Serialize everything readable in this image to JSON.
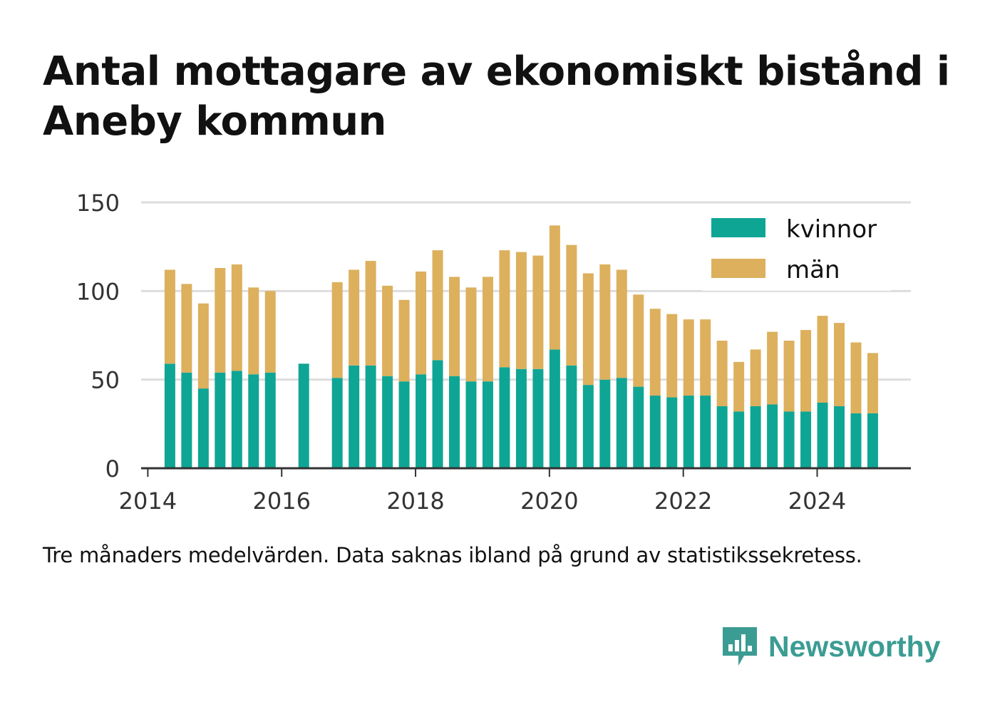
{
  "title": "Antal mottagare av ekonomiskt bistånd i Aneby kommun",
  "footnote": "Tre månaders medelvärden. Data saknas ibland på grund av statistikssekretess.",
  "brand": {
    "name": "Newsworthy",
    "icon": "newsworthy-logo-icon",
    "color": "#3b9c93"
  },
  "colors": {
    "kvinnor": "#0fa595",
    "man": "#dcb05d",
    "grid": "#dddddd",
    "axis": "#333333"
  },
  "chart_data": {
    "type": "bar",
    "stacked": true,
    "legend_position": "top-right",
    "grid": true,
    "ylim": [
      0,
      150
    ],
    "yticks": [
      0,
      50,
      100,
      150
    ],
    "xticks": [
      2014,
      2016,
      2018,
      2020,
      2022,
      2024
    ],
    "xlim": [
      2013.9,
      2025.4
    ],
    "x": [
      2014.33,
      2014.58,
      2014.83,
      2015.08,
      2015.33,
      2015.58,
      2015.83,
      2016.33,
      2016.83,
      2017.08,
      2017.33,
      2017.58,
      2017.83,
      2018.08,
      2018.33,
      2018.58,
      2018.83,
      2019.08,
      2019.33,
      2019.58,
      2019.83,
      2020.08,
      2020.33,
      2020.58,
      2020.83,
      2021.08,
      2021.33,
      2021.58,
      2021.83,
      2022.08,
      2022.33,
      2022.58,
      2022.83,
      2023.08,
      2023.33,
      2023.58,
      2023.83,
      2024.08,
      2024.33,
      2024.58,
      2024.83
    ],
    "series": [
      {
        "name": "kvinnor",
        "values": [
          59,
          54,
          45,
          54,
          55,
          53,
          54,
          59,
          51,
          58,
          58,
          52,
          49,
          53,
          61,
          52,
          49,
          49,
          57,
          56,
          56,
          67,
          58,
          47,
          50,
          51,
          46,
          41,
          40,
          41,
          41,
          35,
          32,
          35,
          36,
          32,
          32,
          37,
          35,
          31,
          31
        ]
      },
      {
        "name": "män",
        "values": [
          53,
          50,
          48,
          59,
          60,
          49,
          46,
          null,
          54,
          54,
          59,
          51,
          46,
          58,
          62,
          56,
          53,
          59,
          66,
          66,
          64,
          70,
          68,
          63,
          65,
          61,
          52,
          49,
          47,
          43,
          43,
          37,
          28,
          32,
          41,
          40,
          46,
          49,
          47,
          40,
          34
        ]
      }
    ]
  }
}
